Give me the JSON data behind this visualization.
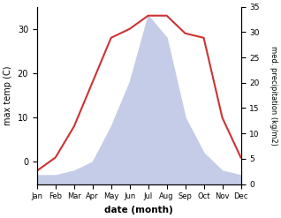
{
  "months": [
    "Jan",
    "Feb",
    "Mar",
    "Apr",
    "May",
    "Jun",
    "Jul",
    "Aug",
    "Sep",
    "Oct",
    "Nov",
    "Dec"
  ],
  "temperature": [
    -2,
    1,
    8,
    18,
    28,
    30,
    33,
    33,
    29,
    28,
    10,
    1
  ],
  "precipitation": [
    -3,
    -3,
    -2,
    0,
    8,
    18,
    33,
    28,
    10,
    2,
    -2,
    -3
  ],
  "temp_color": "#cc3333",
  "precip_fill_color": "#c5cce8",
  "ylabel_left": "max temp (C)",
  "ylabel_right": "med. precipitation (kg/m2)",
  "xlabel": "date (month)",
  "ylim_left": [
    -5,
    35
  ],
  "ylim_right": [
    0,
    35
  ],
  "yticks_left": [
    0,
    10,
    20,
    30
  ],
  "yticks_right": [
    0,
    5,
    10,
    15,
    20,
    25,
    30,
    35
  ]
}
